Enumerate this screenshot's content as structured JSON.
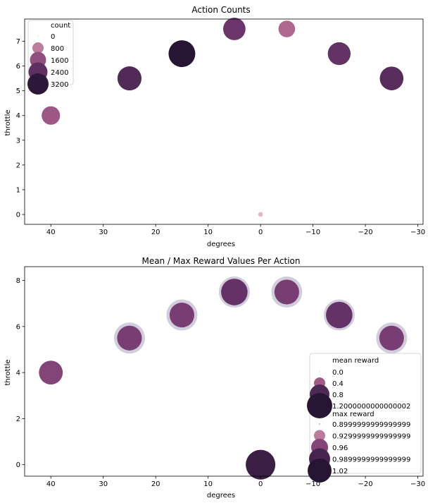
{
  "chart_data": [
    {
      "type": "scatter",
      "title": "Action Counts",
      "xlabel": "degrees",
      "ylabel": "throttle",
      "xlim": [
        45,
        -31
      ],
      "ylim": [
        -0.4,
        7.9
      ],
      "xticks": [
        "40",
        "30",
        "20",
        "10",
        "0",
        "−10",
        "−20",
        "−30"
      ],
      "yticks": [
        "0",
        "1",
        "2",
        "3",
        "4",
        "5",
        "6",
        "7"
      ],
      "size_variable": "count",
      "points": [
        {
          "x": 40,
          "y": 4,
          "count": 1400
        },
        {
          "x": 25,
          "y": 5.5,
          "count": 2600
        },
        {
          "x": 15,
          "y": 6.5,
          "count": 3300
        },
        {
          "x": 5,
          "y": 7.5,
          "count": 2200
        },
        {
          "x": -5,
          "y": 7.5,
          "count": 1100
        },
        {
          "x": -15,
          "y": 6.5,
          "count": 2300
        },
        {
          "x": -25,
          "y": 5.5,
          "count": 2500
        },
        {
          "x": 0,
          "y": 0,
          "count": 20
        }
      ],
      "legend": {
        "title": "count",
        "position": "upper-left",
        "entries": [
          "0",
          "800",
          "1600",
          "2400",
          "3200"
        ]
      }
    },
    {
      "type": "scatter",
      "title": "Mean / Max Reward Values Per Action",
      "xlabel": "degrees",
      "ylabel": "throttle",
      "xlim": [
        45,
        -31
      ],
      "ylim": [
        -0.5,
        8.6
      ],
      "xticks": [
        "40",
        "30",
        "20",
        "10",
        "0",
        "−10",
        "−20",
        "−30"
      ],
      "yticks": [
        "0",
        "2",
        "4",
        "6",
        "8"
      ],
      "series": [
        {
          "name": "max reward",
          "points": [
            {
              "x": 40,
              "y": 4,
              "value": 0.9
            },
            {
              "x": 25,
              "y": 5.5,
              "value": 0.905
            },
            {
              "x": 15,
              "y": 6.5,
              "value": 0.905
            },
            {
              "x": 5,
              "y": 7.5,
              "value": 0.905
            },
            {
              "x": -5,
              "y": 7.5,
              "value": 0.905
            },
            {
              "x": -15,
              "y": 6.5,
              "value": 0.905
            },
            {
              "x": -25,
              "y": 5.5,
              "value": 0.905
            },
            {
              "x": 0,
              "y": 0,
              "value": 0.9
            }
          ]
        },
        {
          "name": "mean reward",
          "points": [
            {
              "x": 40,
              "y": 4,
              "value": 0.55
            },
            {
              "x": 25,
              "y": 5.5,
              "value": 0.6
            },
            {
              "x": 15,
              "y": 6.5,
              "value": 0.6
            },
            {
              "x": 5,
              "y": 7.5,
              "value": 0.7
            },
            {
              "x": -5,
              "y": 7.5,
              "value": 0.6
            },
            {
              "x": -15,
              "y": 6.5,
              "value": 0.7
            },
            {
              "x": -25,
              "y": 5.5,
              "value": 0.6
            },
            {
              "x": 0,
              "y": 0,
              "value": 0.9
            }
          ]
        }
      ],
      "legend": {
        "position": "lower-right",
        "groups": [
          {
            "title": "mean reward",
            "entries": [
              "0.0",
              "0.4",
              "0.8",
              "1.2000000000000002"
            ]
          },
          {
            "title": "max reward",
            "entries": [
              "0.8999999999999999",
              "0.9299999999999999",
              "0.96",
              "0.9899999999999999",
              "1.02"
            ]
          }
        ]
      }
    }
  ]
}
